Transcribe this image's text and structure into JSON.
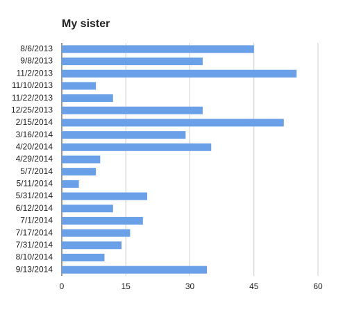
{
  "chart_data": {
    "type": "hbar",
    "title": "My sister",
    "categories": [
      "8/6/2013",
      "9/8/2013",
      "11/2/2013",
      "11/10/2013",
      "11/22/2013",
      "12/25/2013",
      "2/15/2014",
      "3/16/2014",
      "4/20/2014",
      "4/29/2014",
      "5/7/2014",
      "5/11/2014",
      "5/31/2014",
      "6/12/2014",
      "7/1/2014",
      "7/17/2014",
      "7/31/2014",
      "8/10/2014",
      "9/13/2014"
    ],
    "values": [
      45,
      33,
      55,
      8,
      12,
      33,
      52,
      29,
      35,
      9,
      8,
      4,
      20,
      12,
      19,
      16,
      14,
      10,
      34
    ],
    "color": "#6aa0e8",
    "xlim": [
      0,
      60
    ],
    "xticks": [
      0,
      15,
      30,
      45,
      60
    ],
    "grid": true
  }
}
